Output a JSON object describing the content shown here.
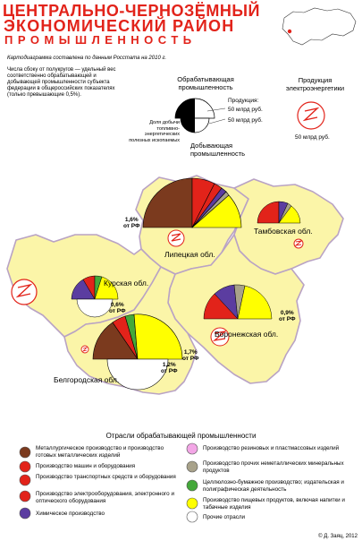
{
  "title": {
    "line1": "ЦЕНТРАЛЬНО-ЧЕРНОЗЁМНЫЙ",
    "line2": "ЭКОНОМИЧЕСКИЙ РАЙОН",
    "line3": "ПРОМЫШЛЕННОСТЬ"
  },
  "source_note": "Картодиаграмма составлена по данным Росстата на 2010 г.",
  "explanation": "Числа сбоку от полукругов — удельный вес соответственно обрабатывающей и добывающей промышленности субъекта федерации в общероссийских показателях (только превышающие 0,5%).",
  "legend_industry": {
    "title": "Обрабатывающая промышленность",
    "production_label": "Продукция:",
    "scale_large": "50 млрд руб.",
    "scale_small": "50 млрд руб.",
    "mining_label": "Доля добычи топливно-энергетических полезных ископаемых",
    "manufacturing_label": "Добывающая промышленность"
  },
  "legend_electric": {
    "title": "Продукция электроэнергетики",
    "value": "50 млрд руб."
  },
  "regions": [
    {
      "name": "Липецкая обл.",
      "share": "1,6%",
      "share_suffix": "от РФ"
    },
    {
      "name": "Тамбовская обл."
    },
    {
      "name": "Курская обл.",
      "share": "0,6%",
      "share_suffix": "от РФ"
    },
    {
      "name": "Воронежская обл.",
      "share": "0,9%",
      "share_suffix": "от РФ"
    },
    {
      "name": "Белгородская обл.",
      "share_a": "1,7%",
      "share_a_suffix": "от РФ",
      "share_b": "1,2%",
      "share_b_suffix": "от РФ"
    }
  ],
  "legend_sectors_title": "Отрасли обрабатывающей промышленности",
  "sectors": [
    {
      "label": "Металлургическое производство и производство готовых металлических изделий",
      "color": "#7b3a1e"
    },
    {
      "label": "Производство машин и оборудования",
      "color": "#e2231a"
    },
    {
      "label": "Производство транспортных средств и оборудования",
      "color": "#e2231a"
    },
    {
      "label": "Производство электрооборудования, электронного и оптического оборудования",
      "color": "#e2231a"
    },
    {
      "label": "Химическое производство",
      "color": "#5b3da0"
    },
    {
      "label": "Производство резиновых и пластмассовых изделий",
      "color": "#f3a6e6"
    },
    {
      "label": "Производство прочих неметаллических минеральных продуктов",
      "color": "#a8a28a"
    },
    {
      "label": "Целлюлозно-бумажное производство; издательская и полиграфическая деятельность",
      "color": "#44a83a"
    },
    {
      "label": "Производство пищевых продуктов, включая напитки и табачные изделия",
      "color": "#ffff00"
    },
    {
      "label": "Прочие отрасли",
      "color": "#ffffff"
    }
  ],
  "copyright": "© Д. Заяц, 2012",
  "colors": {
    "title": "#e2231a",
    "region_fill": "#fbf5a8",
    "region_stroke": "#b9a3c4",
    "electric_symbol": "#e2231a"
  }
}
